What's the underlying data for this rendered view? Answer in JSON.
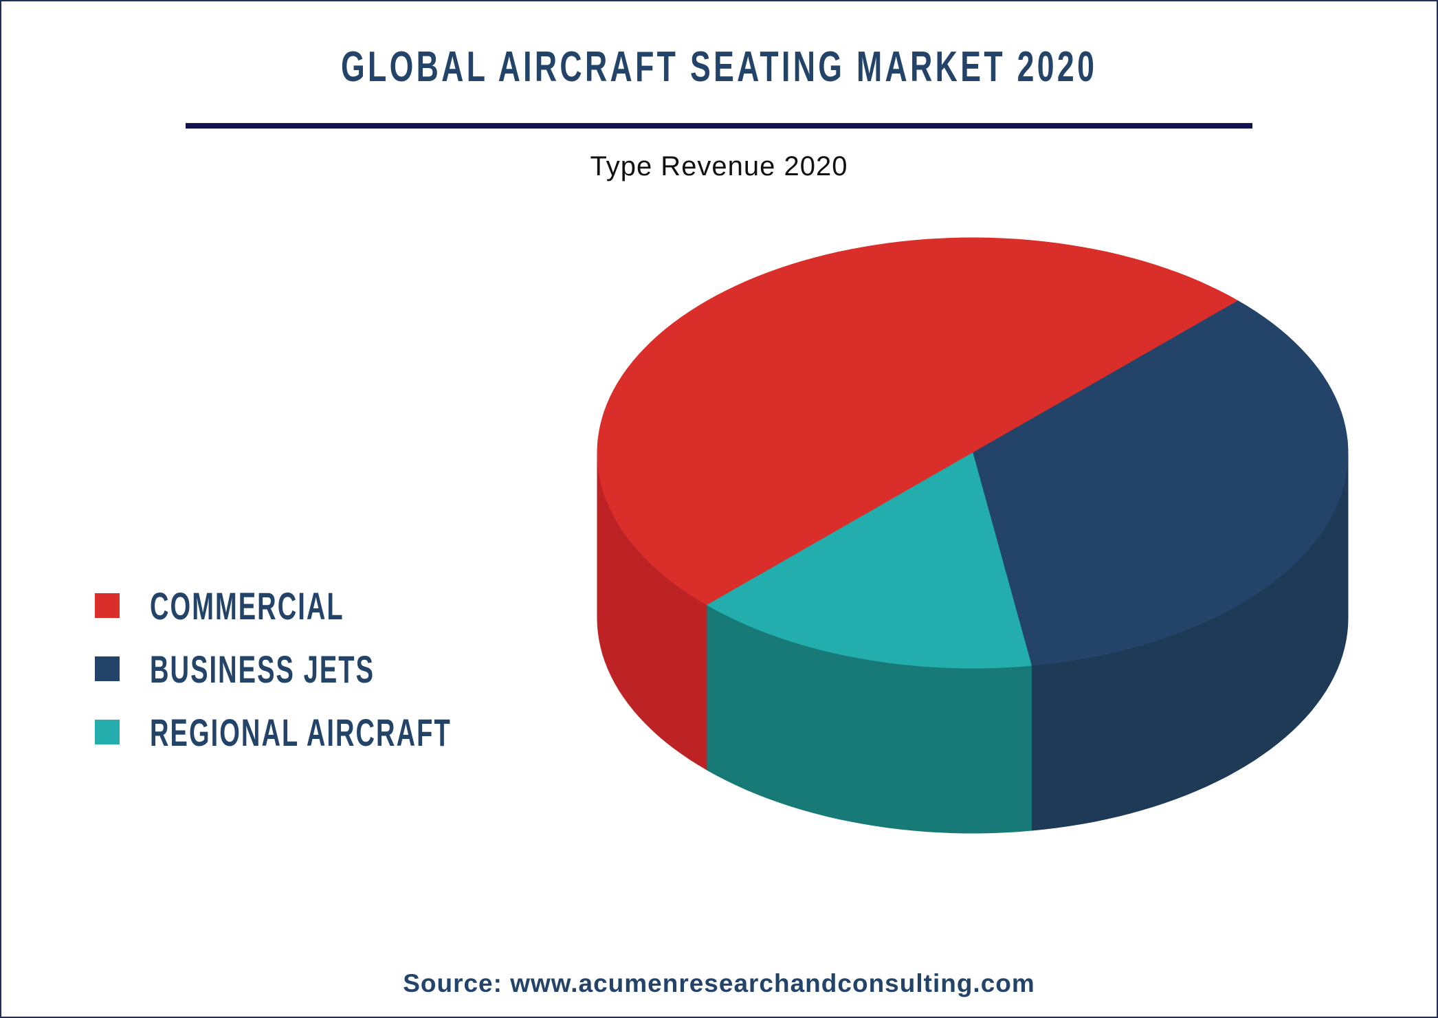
{
  "title": "GLOBAL AIRCRAFT SEATING MARKET 2020",
  "source": "Source: www.acumenresearchandconsulting.com",
  "chart_data": {
    "type": "pie",
    "style": "3d",
    "title": "Type Revenue 2020",
    "legend_position": "left",
    "categories": [
      "COMMERCIAL",
      "BUSINESS JETS",
      "REGIONAL AIRCRAFT"
    ],
    "values": [
      50,
      35,
      15
    ],
    "unit": "% share (estimated from slice size)",
    "colors": [
      "#d92e2a",
      "#234468",
      "#23adad"
    ],
    "side_colors": [
      "#bd2325",
      "#1e3a56",
      "#177a76"
    ]
  }
}
